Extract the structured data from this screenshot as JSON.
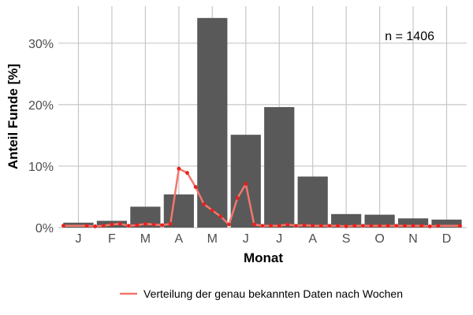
{
  "chart_data": {
    "type": "bar",
    "categories": [
      "J",
      "F",
      "M",
      "A",
      "M",
      "J",
      "J",
      "A",
      "S",
      "O",
      "N",
      "D"
    ],
    "values": [
      0.8,
      1.1,
      3.4,
      5.4,
      34.1,
      15.1,
      19.6,
      8.3,
      2.2,
      2.1,
      1.5,
      1.3
    ],
    "ylim": [
      0,
      36
    ],
    "yticks": [
      0,
      10,
      20,
      30
    ],
    "ytick_labels": [
      "0%",
      "10%",
      "20%",
      "30%"
    ],
    "xlabel": "Monat",
    "ylabel": "Anteil Funde [%]",
    "annotation": "n = 1406",
    "bar_color": "#595959",
    "grid": true,
    "legend_position": "bottom-right",
    "line_series": {
      "name": "Verteilung der genau bekannten Daten nach Wochen",
      "color": "#f4766d",
      "point_color": "#e8211d",
      "x_month_pos": [
        0.55,
        1.25,
        1.5,
        1.75,
        2.0,
        2.25,
        2.5,
        2.75,
        3.0,
        3.25,
        3.5,
        3.75,
        4.0,
        4.25,
        4.5,
        4.75,
        5.0,
        5.25,
        5.5,
        5.75,
        6.0,
        6.25,
        6.5,
        6.75,
        7.0,
        7.25,
        7.5,
        7.75,
        8.0,
        8.25,
        8.5,
        8.75,
        9.0,
        9.25,
        9.5,
        9.75,
        10.0,
        10.25,
        10.5,
        10.75,
        11.0,
        11.25,
        11.5,
        11.75,
        12.4
      ],
      "values": [
        0.3,
        0.3,
        0.2,
        0.3,
        0.5,
        0.6,
        0.3,
        0.4,
        0.6,
        0.5,
        0.4,
        0.6,
        9.6,
        8.9,
        6.6,
        3.8,
        2.8,
        1.8,
        0.5,
        4.8,
        7.1,
        0.5,
        0.3,
        0.3,
        0.3,
        0.5,
        0.3,
        0.4,
        0.3,
        0.3,
        0.3,
        0.3,
        0.2,
        0.3,
        0.3,
        0.3,
        0.3,
        0.3,
        0.3,
        0.3,
        0.3,
        0.3,
        0.2,
        0.3,
        0.3
      ]
    }
  }
}
